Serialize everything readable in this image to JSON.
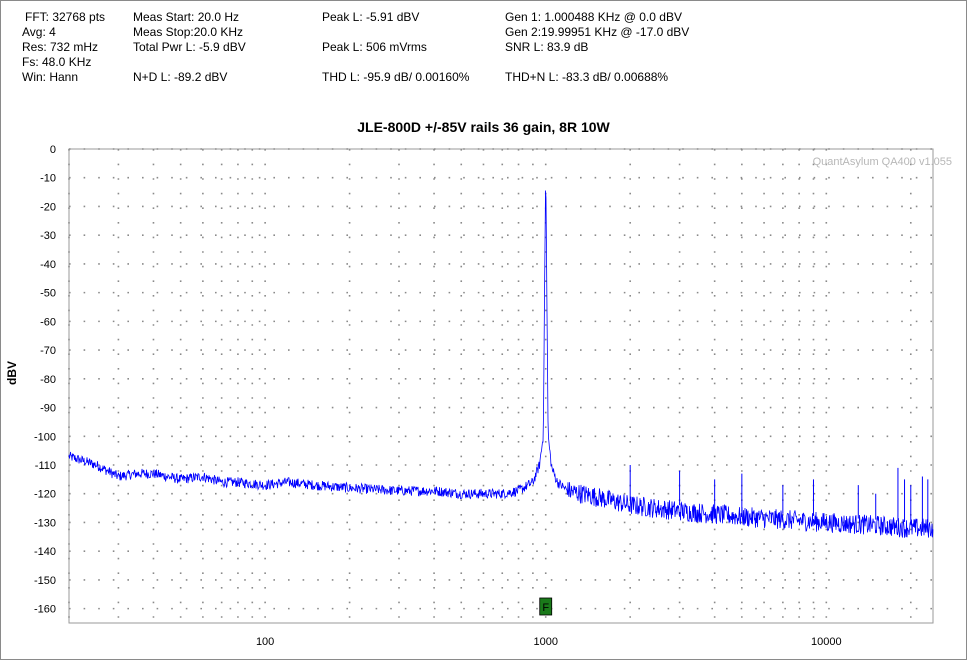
{
  "stats": {
    "fft": "FFT: 32768 pts",
    "avg": "Avg: 4",
    "res": "Res: 732 mHz",
    "fs": "Fs: 48.0 KHz",
    "win": "Win: Hann",
    "meas_start": "Meas Start: 20.0 Hz",
    "meas_stop": "Meas Stop:20.0 KHz",
    "total_pwr": "Total Pwr L: -5.9 dBV",
    "nd": "N+D L: -89.2 dBV",
    "peak_l": "Peak L: -5.91 dBV",
    "peak_l_rms": "Peak L: 506 mVrms",
    "thd": "THD L: -95.9 dB/ 0.00160%",
    "gen1": "Gen 1: 1.000488 KHz @ 0.0  dBV",
    "gen2": "Gen 2:19.99951 KHz @ -17.0  dBV",
    "snr": "SNR L: 83.9 dB",
    "thdn": "THD+N L: -83.3 dB/ 0.00688%"
  },
  "watermark": "QuantAsylum QA400 v1.055",
  "marker_label": "F",
  "colors": {
    "trace": "#0000ff",
    "marker": "#1a7a1a",
    "grid": "#8a8a8a"
  },
  "chart_data": {
    "type": "line",
    "title": "JLE-800D +/-85V rails 36 gain, 8R 10W",
    "xlabel": "",
    "ylabel": "dBV",
    "x_scale": "log",
    "xlim": [
      20,
      24000
    ],
    "ylim": [
      -165,
      0
    ],
    "x_ticks": [
      100,
      1000,
      10000
    ],
    "x_tick_labels": [
      "100",
      "1000",
      "10000"
    ],
    "y_ticks": [
      0,
      -10,
      -20,
      -30,
      -40,
      -50,
      -60,
      -70,
      -80,
      -90,
      -100,
      -110,
      -120,
      -130,
      -140,
      -150,
      -160
    ],
    "grid": true,
    "series": [
      {
        "name": "",
        "color": "#0000ff",
        "points": [
          [
            20,
            -107
          ],
          [
            25,
            -110
          ],
          [
            30,
            -114
          ],
          [
            35,
            -113
          ],
          [
            40,
            -113
          ],
          [
            50,
            -115
          ],
          [
            60,
            -114
          ],
          [
            70,
            -116
          ],
          [
            80,
            -116
          ],
          [
            100,
            -117
          ],
          [
            120,
            -116
          ],
          [
            150,
            -117
          ],
          [
            200,
            -118
          ],
          [
            300,
            -119
          ],
          [
            400,
            -119
          ],
          [
            500,
            -120
          ],
          [
            600,
            -120
          ],
          [
            700,
            -120
          ],
          [
            800,
            -119
          ],
          [
            900,
            -116
          ],
          [
            950,
            -110
          ],
          [
            980,
            -100
          ],
          [
            1000,
            -6
          ],
          [
            1020,
            -100
          ],
          [
            1050,
            -111
          ],
          [
            1100,
            -116
          ],
          [
            1200,
            -119
          ],
          [
            1500,
            -121
          ],
          [
            2000,
            -124
          ],
          [
            3000,
            -126
          ],
          [
            5000,
            -128
          ],
          [
            7000,
            -129
          ],
          [
            10000,
            -130
          ],
          [
            15000,
            -131
          ],
          [
            20000,
            -132
          ],
          [
            24000,
            -132
          ]
        ]
      }
    ],
    "harmonic_spurs": [
      [
        2000,
        -110
      ],
      [
        3000,
        -112
      ],
      [
        4000,
        -115
      ],
      [
        5000,
        -113
      ],
      [
        7000,
        -117
      ],
      [
        9000,
        -115
      ],
      [
        13000,
        -117
      ],
      [
        15000,
        -120
      ],
      [
        18000,
        -111
      ],
      [
        19000,
        -115
      ],
      [
        20000,
        -117
      ],
      [
        22000,
        -114
      ],
      [
        23000,
        -115
      ]
    ],
    "marker_x": 1000
  }
}
